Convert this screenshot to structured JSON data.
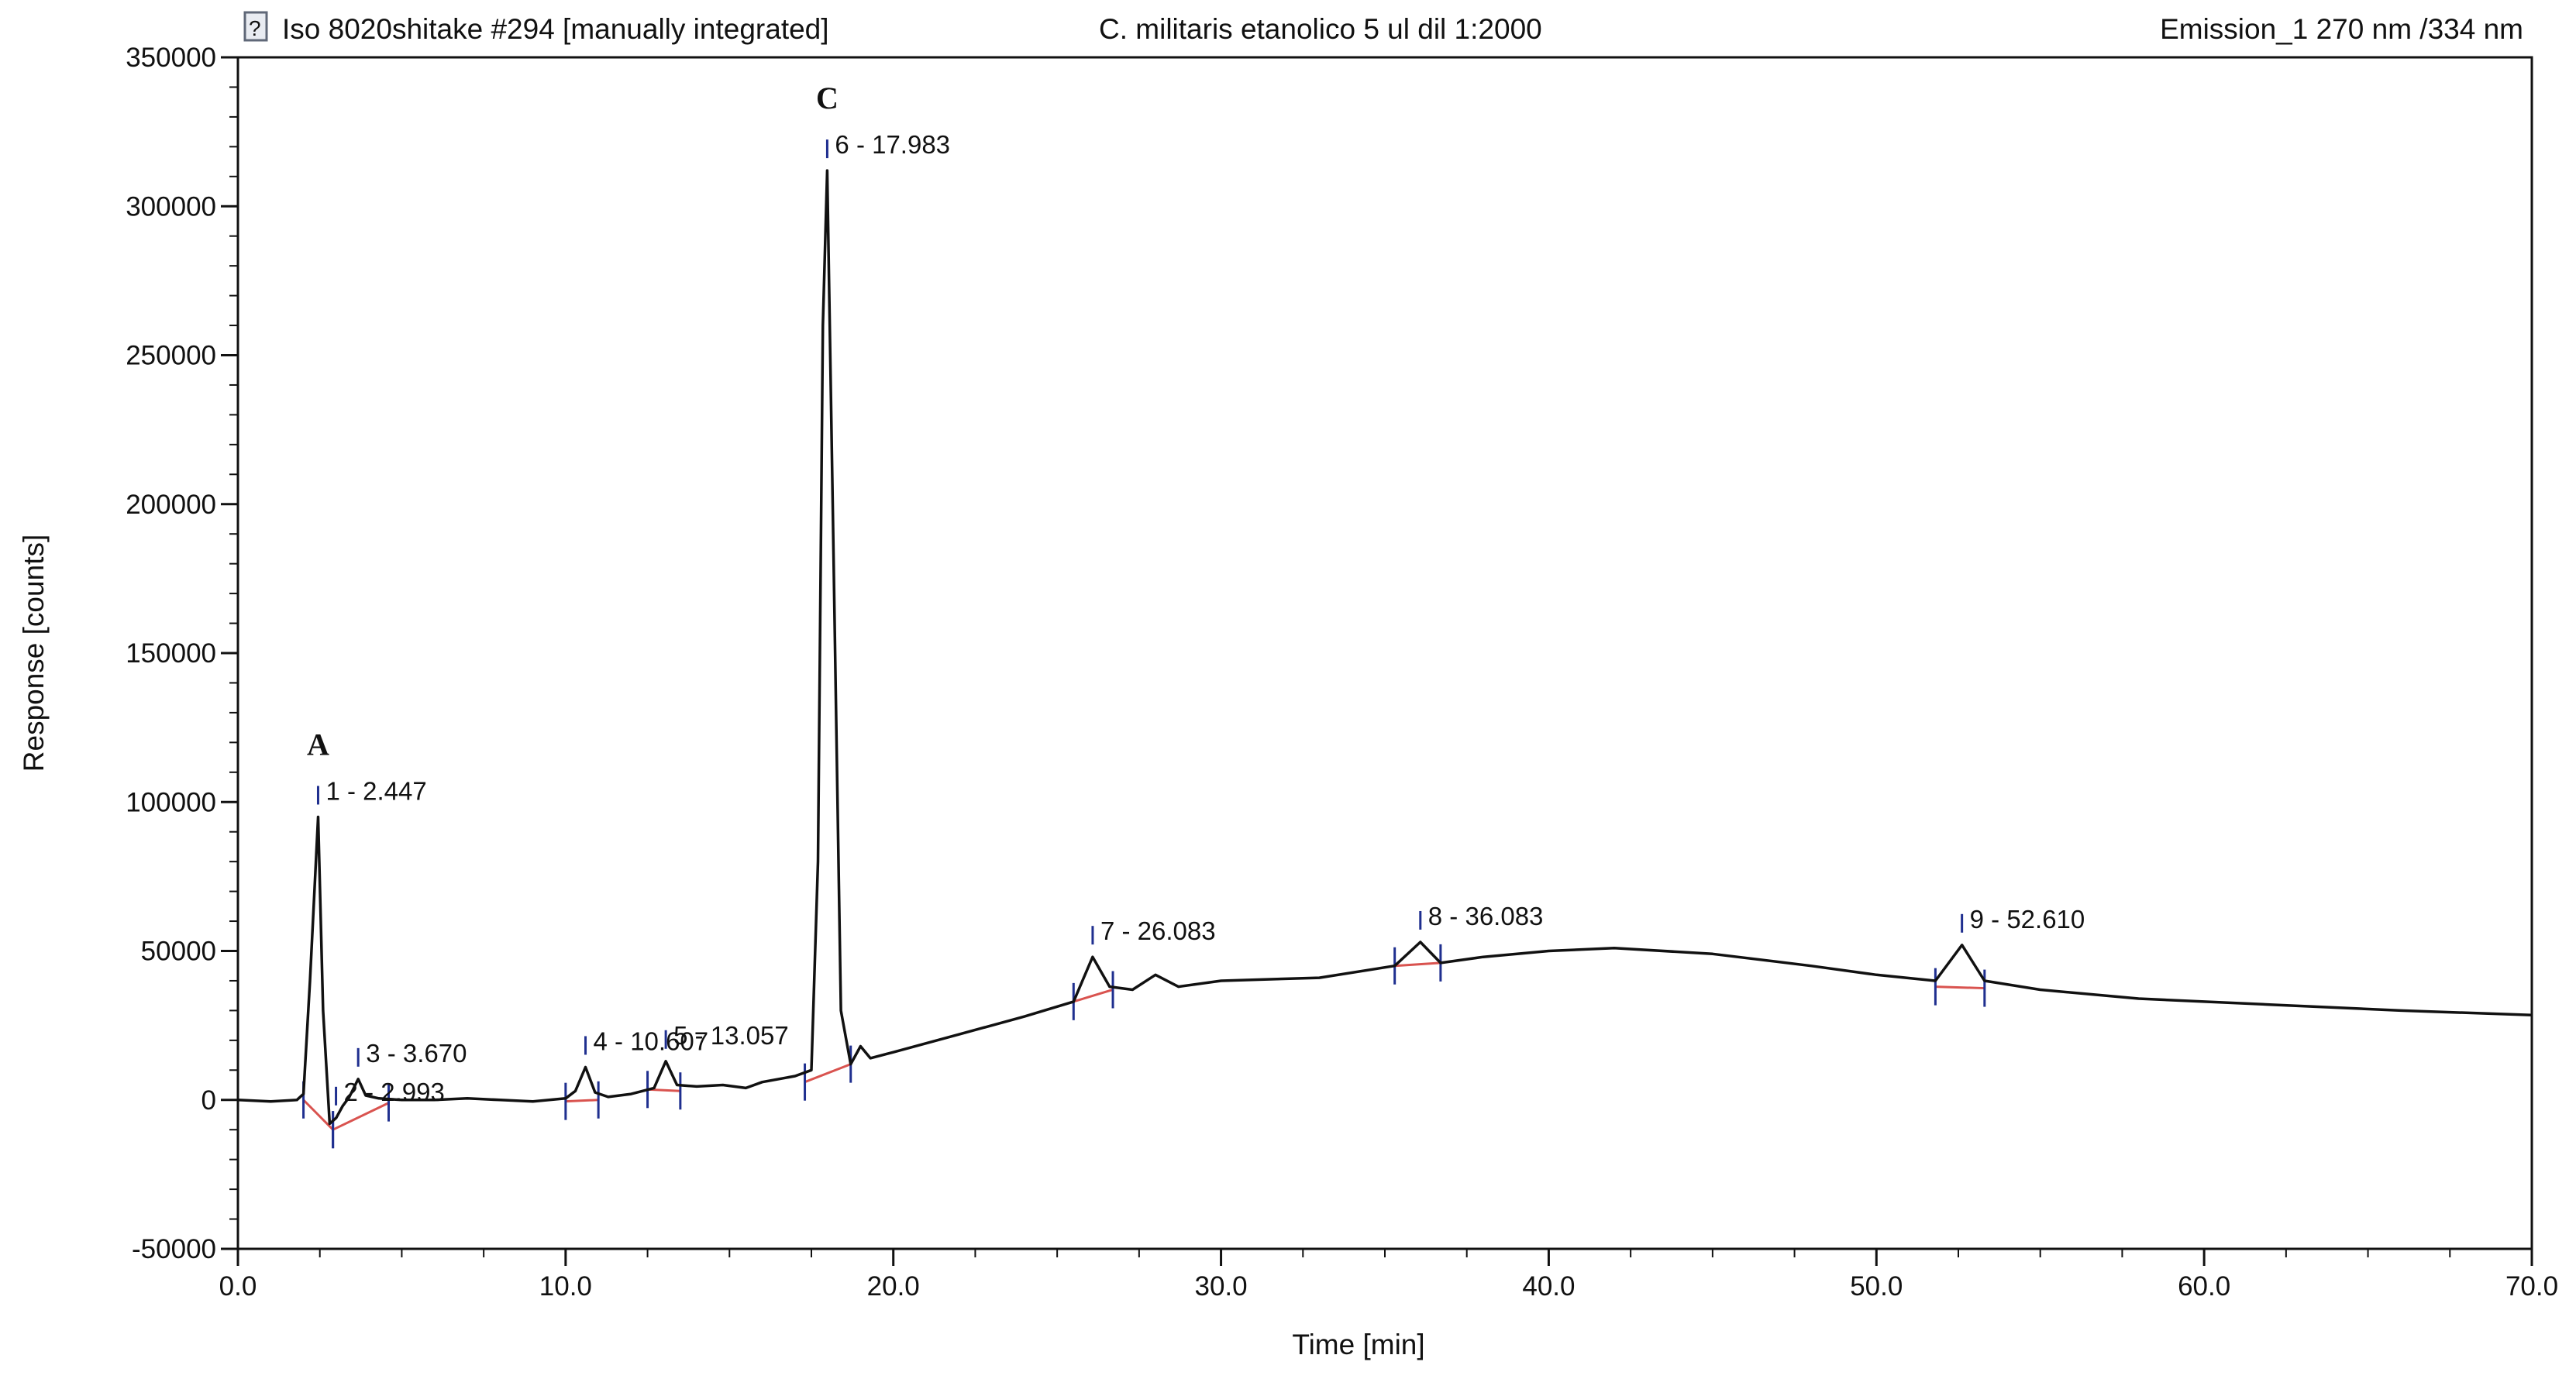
{
  "header": {
    "icon": "document-icon",
    "sample": "Iso 8020shitake #294 [manually integrated]",
    "description": "C. militaris etanolico 5 ul dil 1:2000",
    "channel": "Emission_1 270 nm /334 nm"
  },
  "chart_data": {
    "type": "line",
    "xlabel": "Time [min]",
    "ylabel": "Response [counts]",
    "xlim": [
      0,
      70
    ],
    "ylim": [
      -50000,
      350000
    ],
    "x_ticks": [
      "0.0",
      "10.0",
      "20.0",
      "30.0",
      "40.0",
      "50.0",
      "60.0",
      "70.0"
    ],
    "y_ticks": [
      "-50000",
      "0",
      "50000",
      "100000",
      "150000",
      "200000",
      "250000",
      "300000",
      "350000"
    ],
    "grid": false,
    "trace_color": "#111111",
    "baseline_color": "#d9534f",
    "marker_color": "#1f2f8f",
    "series": [
      {
        "x": [
          0,
          1,
          1.8,
          2.0,
          2.2,
          2.447,
          2.6,
          2.8,
          3.0,
          3.2,
          3.4,
          3.67,
          3.9,
          4.3,
          5,
          6,
          7,
          8,
          9,
          10,
          10.3,
          10.607,
          10.9,
          11.3,
          12,
          12.7,
          13.057,
          13.4,
          14,
          14.8,
          15.5,
          16,
          17,
          17.5,
          17.7,
          17.85,
          17.983,
          18.15,
          18.4,
          18.7,
          19.0,
          19.3,
          20,
          22,
          24,
          25.5,
          26.083,
          26.6,
          27.3,
          28,
          28.7,
          30,
          33,
          35.3,
          36.083,
          36.7,
          38,
          40,
          42,
          45,
          48,
          50,
          51.8,
          52.61,
          53.3,
          55,
          58,
          62,
          66,
          70
        ],
        "y": [
          0,
          -500,
          0,
          2000,
          40000,
          95000,
          30000,
          -8000,
          -6000,
          -2000,
          1000,
          7000,
          1500,
          500,
          0,
          0,
          500,
          0,
          -500,
          500,
          3000,
          11000,
          2500,
          1000,
          2000,
          4000,
          13000,
          5000,
          4500,
          5000,
          4000,
          6000,
          8000,
          10000,
          80000,
          260000,
          312000,
          200000,
          30000,
          12000,
          18000,
          14000,
          16000,
          22000,
          28000,
          33000,
          48000,
          38000,
          37000,
          42000,
          38000,
          40000,
          41000,
          45000,
          53000,
          46000,
          48000,
          50000,
          51000,
          49000,
          45000,
          42000,
          40000,
          52000,
          40000,
          37000,
          34000,
          32000,
          30000,
          28500
        ]
      }
    ],
    "peaks": [
      {
        "label": "1 - 2.447",
        "x": 2.447,
        "y": 95000,
        "letter": "A"
      },
      {
        "label": "2 - 2.993",
        "x": 2.993,
        "y": -6000
      },
      {
        "label": "3 - 3.670",
        "x": 3.67,
        "y": 7000
      },
      {
        "label": "4 - 10.607",
        "x": 10.607,
        "y": 11000
      },
      {
        "label": "5 - 13.057",
        "x": 13.057,
        "y": 13000
      },
      {
        "label": "6 - 17.983",
        "x": 17.983,
        "y": 312000,
        "letter": "C"
      },
      {
        "label": "7 - 26.083",
        "x": 26.083,
        "y": 48000
      },
      {
        "label": "8 - 36.083",
        "x": 36.083,
        "y": 53000
      },
      {
        "label": "9 - 52.610",
        "x": 52.61,
        "y": 52000
      }
    ],
    "integration_baselines": [
      {
        "x": [
          2.0,
          2.9
        ],
        "y": [
          0,
          -10000
        ]
      },
      {
        "x": [
          2.9,
          4.6
        ],
        "y": [
          -10000,
          -1000
        ]
      },
      {
        "x": [
          10.0,
          11.0
        ],
        "y": [
          -500,
          0
        ]
      },
      {
        "x": [
          12.5,
          13.5
        ],
        "y": [
          3500,
          3000
        ]
      },
      {
        "x": [
          17.3,
          18.7
        ],
        "y": [
          6000,
          12000
        ]
      },
      {
        "x": [
          25.5,
          26.7
        ],
        "y": [
          33000,
          37000
        ]
      },
      {
        "x": [
          35.3,
          36.7
        ],
        "y": [
          45000,
          46000
        ]
      },
      {
        "x": [
          51.8,
          53.3
        ],
        "y": [
          38000,
          37500
        ]
      }
    ]
  }
}
